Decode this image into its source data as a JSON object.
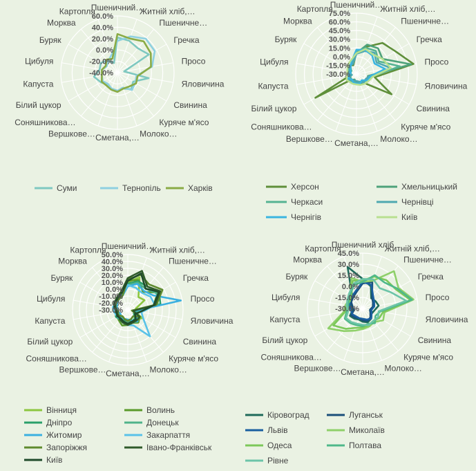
{
  "categories": [
    "Пшеничний…",
    "Житній хліб,…",
    "Пшеничне…",
    "Гречка",
    "Просо",
    "Яловичина",
    "Свинина",
    "Куряче м'ясо",
    "Молоко…",
    "Сметана,…",
    "Вершкове…",
    "Соняшникова…",
    "Білий цукор",
    "Капуста",
    "Цибуля",
    "Буряк",
    "Морква",
    "Картопля"
  ],
  "categories_d": [
    "Пшеничний хліб",
    "Житній хліб,…",
    "Пшеничне…",
    "Гречка",
    "Просо",
    "Яловичина",
    "Свинина",
    "Куряче м'ясо",
    "Молоко…",
    "Сметана,…",
    "Вершкове…",
    "Соняшникова…",
    "Білий цукор",
    "Капуста",
    "Цибуля",
    "Буряк",
    "Морква",
    "Картопля"
  ],
  "chart_data": [
    {
      "type": "radar",
      "categories": [
        "Пшеничний…",
        "Житній хліб,…",
        "Пшеничне…",
        "Гречка",
        "Просо",
        "Яловичина",
        "Свинина",
        "Куряче м'ясо",
        "Молоко…",
        "Сметана,…",
        "Вершкове…",
        "Соняшникова…",
        "Білий цукор",
        "Капуста",
        "Цибуля",
        "Буряк",
        "Морква",
        "Картопля"
      ],
      "ylim": [
        -40,
        60
      ],
      "ticks": [
        "60.0%",
        "40.0%",
        "20.0%",
        "0.0%",
        "-20.0%",
        "-40.0%"
      ],
      "tick_values": [
        60,
        40,
        20,
        0,
        -20,
        -40
      ],
      "legend_cols": 3,
      "series": [
        {
          "name": "Суми",
          "color": "#7ec8c0",
          "values": [
            22,
            20,
            16,
            24,
            -28,
            16,
            -8,
            -2,
            -10,
            -8,
            -10,
            -12,
            -6,
            2,
            -8,
            -6,
            -12,
            -22
          ]
        },
        {
          "name": "Тернопіль",
          "color": "#8ed0e0",
          "values": [
            16,
            28,
            38,
            36,
            22,
            -6,
            -4,
            0,
            -12,
            -8,
            -10,
            -14,
            -10,
            -12,
            -12,
            -18,
            -14,
            -8
          ]
        },
        {
          "name": "Харків",
          "color": "#8aab45",
          "values": [
            28,
            24,
            32,
            28,
            20,
            -4,
            -2,
            -8,
            -10,
            -6,
            -8,
            -10,
            -8,
            -12,
            -12,
            -16,
            -10,
            -14
          ]
        }
      ]
    },
    {
      "type": "radar",
      "categories": [
        "Пшеничний…",
        "Житній хліб,…",
        "Пшеничне…",
        "Гречка",
        "Просо",
        "Яловичина",
        "Свинина",
        "Куряче м'ясо",
        "Молоко…",
        "Сметана,…",
        "Вершкове…",
        "Соняшникова…",
        "Білий цукор",
        "Капуста",
        "Цибуля",
        "Буряк",
        "Морква",
        "Картопля"
      ],
      "ylim": [
        -30,
        75
      ],
      "ticks": [
        "75.0%",
        "60.0%",
        "45.0%",
        "30.0%",
        "15.0%",
        "0.0%",
        "-15.0%",
        "-30.0%"
      ],
      "tick_values": [
        75,
        60,
        45,
        30,
        15,
        0,
        -15,
        -30
      ],
      "legend_cols": 2,
      "series": [
        {
          "name": "Херсон",
          "color": "#5f8f3a",
          "values": [
            8,
            20,
            40,
            48,
            70,
            2,
            40,
            -10,
            -12,
            -14,
            -16,
            -18,
            52,
            -20,
            -18,
            -16,
            -10,
            -14
          ]
        },
        {
          "name": "Хмельницький",
          "color": "#4ea27a",
          "values": [
            6,
            24,
            28,
            22,
            66,
            -10,
            -8,
            -14,
            -14,
            -16,
            -20,
            -16,
            -18,
            -20,
            -20,
            -16,
            -12,
            -10
          ]
        },
        {
          "name": "Черкаси",
          "color": "#55b392",
          "values": [
            10,
            18,
            22,
            14,
            46,
            -4,
            -10,
            -12,
            -14,
            -12,
            -16,
            -14,
            -16,
            -18,
            -16,
            -20,
            -14,
            -8
          ]
        },
        {
          "name": "Чернівці",
          "color": "#4ea8b0",
          "values": [
            5,
            12,
            18,
            10,
            30,
            -8,
            -12,
            -10,
            -16,
            -18,
            -18,
            -16,
            -12,
            -22,
            -16,
            -14,
            -10,
            -12
          ]
        },
        {
          "name": "Чернігів",
          "color": "#3ab5e0",
          "values": [
            12,
            14,
            12,
            6,
            20,
            -6,
            -8,
            -16,
            -12,
            -14,
            -14,
            -18,
            -14,
            -16,
            -20,
            -18,
            -14,
            -6
          ]
        },
        {
          "name": "Київ",
          "color": "#b8e090",
          "values": [
            6,
            16,
            14,
            22,
            30,
            -2,
            -6,
            -8,
            -10,
            -12,
            -12,
            -12,
            -10,
            -14,
            -14,
            -12,
            -8,
            -4
          ]
        }
      ]
    },
    {
      "type": "radar",
      "categories": [
        "Пшеничний…",
        "Житній хліб,…",
        "Пшеничне…",
        "Гречка",
        "Просо",
        "Яловичина",
        "Свинина",
        "Куряче м'ясо",
        "Молоко…",
        "Сметана,…",
        "Вершкове…",
        "Соняшникова…",
        "Білий цукор",
        "Капуста",
        "Цибуля",
        "Буряк",
        "Морква",
        "Картопля"
      ],
      "ylim": [
        -30,
        50
      ],
      "ticks": [
        "50.0%",
        "40.0%",
        "30.0%",
        "20.0%",
        "10.0%",
        "0.0%",
        "-10.0%",
        "-20.0%",
        "-30.0%"
      ],
      "tick_values": [
        50,
        40,
        30,
        20,
        10,
        0,
        -10,
        -20,
        -30
      ],
      "legend_cols": 2,
      "series": [
        {
          "name": "Вінниця",
          "color": "#8cc63f",
          "values": [
            10,
            20,
            -6,
            -2,
            -18,
            -20,
            -6,
            -12,
            -12,
            -14,
            -14,
            -16,
            -14,
            -12,
            -10,
            -8,
            -6,
            -4
          ]
        },
        {
          "name": "Волинь",
          "color": "#5a9a2a",
          "values": [
            12,
            16,
            4,
            20,
            8,
            -24,
            -10,
            -6,
            -10,
            -8,
            -6,
            -10,
            -12,
            -14,
            -12,
            -10,
            -8,
            -6
          ]
        },
        {
          "name": "Дніпро",
          "color": "#2aa06a",
          "values": [
            8,
            14,
            14,
            22,
            18,
            -18,
            -20,
            -14,
            -12,
            -12,
            -14,
            -12,
            -10,
            -12,
            -14,
            -12,
            -8,
            -8
          ]
        },
        {
          "name": "Донецьк",
          "color": "#4fb38a",
          "values": [
            6,
            12,
            10,
            18,
            14,
            -16,
            -14,
            -8,
            -10,
            -12,
            -12,
            -14,
            -16,
            -14,
            -12,
            -10,
            -6,
            -6
          ]
        },
        {
          "name": "Житомир",
          "color": "#3ab0e0",
          "values": [
            4,
            10,
            6,
            12,
            48,
            -20,
            -16,
            -8,
            -14,
            -16,
            -16,
            -14,
            -18,
            -16,
            -14,
            -12,
            -10,
            -8
          ]
        },
        {
          "name": "Закарпаття",
          "color": "#59c2e8",
          "values": [
            6,
            4,
            2,
            8,
            10,
            -10,
            -4,
            20,
            -6,
            -8,
            -10,
            -12,
            -12,
            -10,
            -8,
            -10,
            -8,
            -6
          ]
        },
        {
          "name": "Запоріжжя",
          "color": "#5e8a2e",
          "values": [
            14,
            24,
            18,
            28,
            12,
            -24,
            -10,
            -18,
            -16,
            -14,
            -16,
            -18,
            -14,
            -16,
            -12,
            -10,
            -10,
            -8
          ]
        },
        {
          "name": "Івано-Франківськ",
          "color": "#2f5a2a",
          "values": [
            16,
            30,
            14,
            24,
            10,
            -22,
            -10,
            -10,
            -10,
            -8,
            -10,
            -12,
            -14,
            -12,
            -12,
            -8,
            -6,
            -2
          ]
        },
        {
          "name": "Київ",
          "color": "#1f4a2a",
          "values": [
            12,
            26,
            10,
            22,
            8,
            -12,
            -18,
            -12,
            -12,
            -10,
            -12,
            -14,
            -12,
            -14,
            -10,
            -8,
            -8,
            -4
          ]
        }
      ]
    },
    {
      "type": "radar",
      "categories": [
        "Пшеничний хліб",
        "Житній хліб,…",
        "Пшеничне…",
        "Гречка",
        "Просо",
        "Яловичина",
        "Свинина",
        "Куряче м'ясо",
        "Молоко…",
        "Сметана,…",
        "Вершкове…",
        "Соняшникова…",
        "Білий цукор",
        "Капуста",
        "Цибуля",
        "Буряк",
        "Морква",
        "Картопля"
      ],
      "ylim": [
        -30,
        45
      ],
      "ticks": [
        "45.0%",
        "30.0%",
        "15.0%",
        "0.0%",
        "-15.0%",
        "-30.0%"
      ],
      "tick_values": [
        45,
        30,
        15,
        0,
        -15,
        -30
      ],
      "legend_cols": 2,
      "series": [
        {
          "name": "Кіровоград",
          "color": "#1f6a5a",
          "values": [
            10,
            2,
            -12,
            -10,
            -8,
            -14,
            -16,
            -12,
            -10,
            -12,
            -14,
            -12,
            -10,
            -16,
            -14,
            -10,
            -8,
            30
          ]
        },
        {
          "name": "Луганськ",
          "color": "#1a4f7a",
          "values": [
            4,
            8,
            -10,
            -14,
            -16,
            -20,
            -18,
            -14,
            -12,
            -14,
            -16,
            -14,
            -12,
            -18,
            -16,
            -12,
            -10,
            -6
          ]
        },
        {
          "name": "Львів",
          "color": "#1a5fa0",
          "values": [
            6,
            4,
            -8,
            -12,
            -14,
            -18,
            -16,
            -12,
            -14,
            -16,
            -16,
            -16,
            -14,
            -14,
            -12,
            -10,
            -8,
            -4
          ]
        },
        {
          "name": "Миколаїв",
          "color": "#8fd06a",
          "values": [
            6,
            10,
            36,
            26,
            40,
            0,
            2,
            -6,
            -4,
            -2,
            2,
            10,
            24,
            -4,
            -6,
            -8,
            -4,
            14
          ]
        },
        {
          "name": "Одеса",
          "color": "#7cc85a",
          "values": [
            8,
            16,
            20,
            22,
            36,
            -2,
            -4,
            -8,
            -6,
            -4,
            -2,
            6,
            16,
            -6,
            -8,
            -10,
            -6,
            10
          ]
        },
        {
          "name": "Полтава",
          "color": "#4fb88a",
          "values": [
            6,
            18,
            16,
            24,
            38,
            -6,
            -10,
            -4,
            -8,
            -6,
            -6,
            -4,
            -2,
            -8,
            -10,
            -8,
            -4,
            4
          ]
        },
        {
          "name": "Рівне",
          "color": "#6cc4a8",
          "values": [
            10,
            12,
            6,
            14,
            30,
            -8,
            -6,
            -8,
            -6,
            -8,
            -8,
            -6,
            -4,
            -10,
            -8,
            -6,
            -2,
            6
          ]
        }
      ]
    }
  ]
}
